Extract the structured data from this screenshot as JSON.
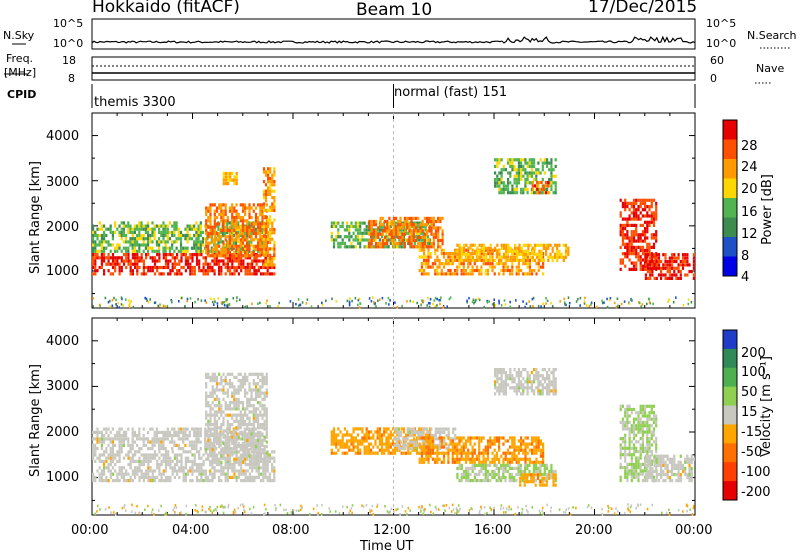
{
  "header": {
    "station": "Hokkaido (fitACF)",
    "beam": "Beam 10",
    "date": "17/Dec/2015"
  },
  "noise_panel": {
    "left_label": "N.Sky",
    "right_label": "N.Search",
    "left_ticks": [
      "10^5",
      "10^0"
    ],
    "right_ticks": [
      "10^5",
      "10^0"
    ]
  },
  "freq_panel": {
    "left_label_1": "Freq.",
    "left_label_2": "[MHz]",
    "right_label": "Nave",
    "left_ticks": [
      "18",
      "8"
    ],
    "right_ticks": [
      "60",
      "0"
    ]
  },
  "cpid_panel": {
    "label": "CPID",
    "modes": [
      {
        "name": "themis 3300"
      },
      {
        "name": "normal (fast) 151"
      }
    ]
  },
  "x_axis": {
    "label": "Time UT",
    "ticks": [
      "00:00",
      "04:00",
      "08:00",
      "12:00",
      "16:00",
      "20:00",
      "00:00"
    ]
  },
  "power_panel": {
    "ylabel": "Slant Range [km]",
    "yticks": [
      "4000",
      "3000",
      "2000",
      "1000"
    ],
    "cbar_label": "Power [dB]",
    "cbar_ticks": [
      "28",
      "24",
      "20",
      "16",
      "12",
      "8",
      "4"
    ]
  },
  "velocity_panel": {
    "ylabel": "Slant Range [km]",
    "yticks": [
      "4000",
      "3000",
      "2000",
      "1000"
    ],
    "cbar_label": "Velocity [m s⁻¹]",
    "cbar_ticks": [
      "200",
      "100",
      "50",
      "15",
      "-15",
      "-50",
      "-100",
      "-200"
    ]
  },
  "colors": {
    "power_scale": [
      "#0000e6",
      "#1e50c8",
      "#3c8c50",
      "#50b450",
      "#ffd700",
      "#ff9b00",
      "#ff5000",
      "#e60000"
    ],
    "velocity_scale": [
      "#1e3cc8",
      "#2e8b57",
      "#4caf50",
      "#90d050",
      "#c8c8c0",
      "#ffa500",
      "#ff7000",
      "#ff4000",
      "#e60000"
    ]
  },
  "chart_data": [
    {
      "type": "heatmap",
      "title": "Power",
      "xlabel": "Time UT",
      "ylabel": "Slant Range [km]",
      "x_range_hours": [
        0,
        24
      ],
      "ylim": [
        180,
        4500
      ],
      "zlabel": "Power [dB]",
      "zlim": [
        0,
        32
      ],
      "regions": [
        {
          "t": [
            0.0,
            7.3
          ],
          "range": [
            900,
            1400
          ],
          "value": 28
        },
        {
          "t": [
            0.0,
            7.0
          ],
          "range": [
            1400,
            2100
          ],
          "value": 14
        },
        {
          "t": [
            4.5,
            7.0
          ],
          "range": [
            1300,
            2500
          ],
          "value": 24
        },
        {
          "t": [
            5.2,
            5.8
          ],
          "range": [
            2900,
            3200
          ],
          "value": 20
        },
        {
          "t": [
            6.8,
            7.3
          ],
          "range": [
            1100,
            3300
          ],
          "value": 22
        },
        {
          "t": [
            9.5,
            13.5
          ],
          "range": [
            1500,
            2100
          ],
          "value": 14
        },
        {
          "t": [
            11.0,
            14.0
          ],
          "range": [
            1500,
            2200
          ],
          "value": 24
        },
        {
          "t": [
            13.0,
            18.0
          ],
          "range": [
            900,
            1500
          ],
          "value": 22
        },
        {
          "t": [
            14.5,
            19.0
          ],
          "range": [
            1200,
            1600
          ],
          "value": 20
        },
        {
          "t": [
            16.0,
            18.5
          ],
          "range": [
            2700,
            3500
          ],
          "value": 14
        },
        {
          "t": [
            17.5,
            18.2
          ],
          "range": [
            2700,
            3000
          ],
          "value": 26
        },
        {
          "t": [
            21.0,
            22.5
          ],
          "range": [
            1000,
            2600
          ],
          "value": 28
        },
        {
          "t": [
            22.0,
            24.0
          ],
          "range": [
            800,
            1400
          ],
          "value": 28
        }
      ]
    },
    {
      "type": "heatmap",
      "title": "Velocity",
      "xlabel": "Time UT",
      "ylabel": "Slant Range [km]",
      "x_range_hours": [
        0,
        24
      ],
      "ylim": [
        180,
        4500
      ],
      "zlabel": "Velocity [m s⁻¹]",
      "zlim": [
        -250,
        250
      ],
      "regions": [
        {
          "t": [
            0.0,
            7.3
          ],
          "range": [
            900,
            1600
          ],
          "value": 0
        },
        {
          "t": [
            0.0,
            7.0
          ],
          "range": [
            1600,
            2100
          ],
          "value": 0
        },
        {
          "t": [
            4.5,
            7.0
          ],
          "range": [
            1300,
            3300
          ],
          "value": 0
        },
        {
          "t": [
            9.5,
            13.5
          ],
          "range": [
            1500,
            2100
          ],
          "value": -60
        },
        {
          "t": [
            12.0,
            14.5
          ],
          "range": [
            1600,
            2100
          ],
          "value": 0
        },
        {
          "t": [
            13.0,
            18.0
          ],
          "range": [
            1300,
            1900
          ],
          "value": -70
        },
        {
          "t": [
            14.5,
            18.5
          ],
          "range": [
            900,
            1300
          ],
          "value": 30
        },
        {
          "t": [
            17.0,
            18.5
          ],
          "range": [
            800,
            1100
          ],
          "value": -60
        },
        {
          "t": [
            16.0,
            18.5
          ],
          "range": [
            2800,
            3400
          ],
          "value": 0
        },
        {
          "t": [
            21.0,
            22.5
          ],
          "range": [
            900,
            2600
          ],
          "value": 30
        },
        {
          "t": [
            22.0,
            24.0
          ],
          "range": [
            900,
            1500
          ],
          "value": 0
        }
      ]
    }
  ]
}
